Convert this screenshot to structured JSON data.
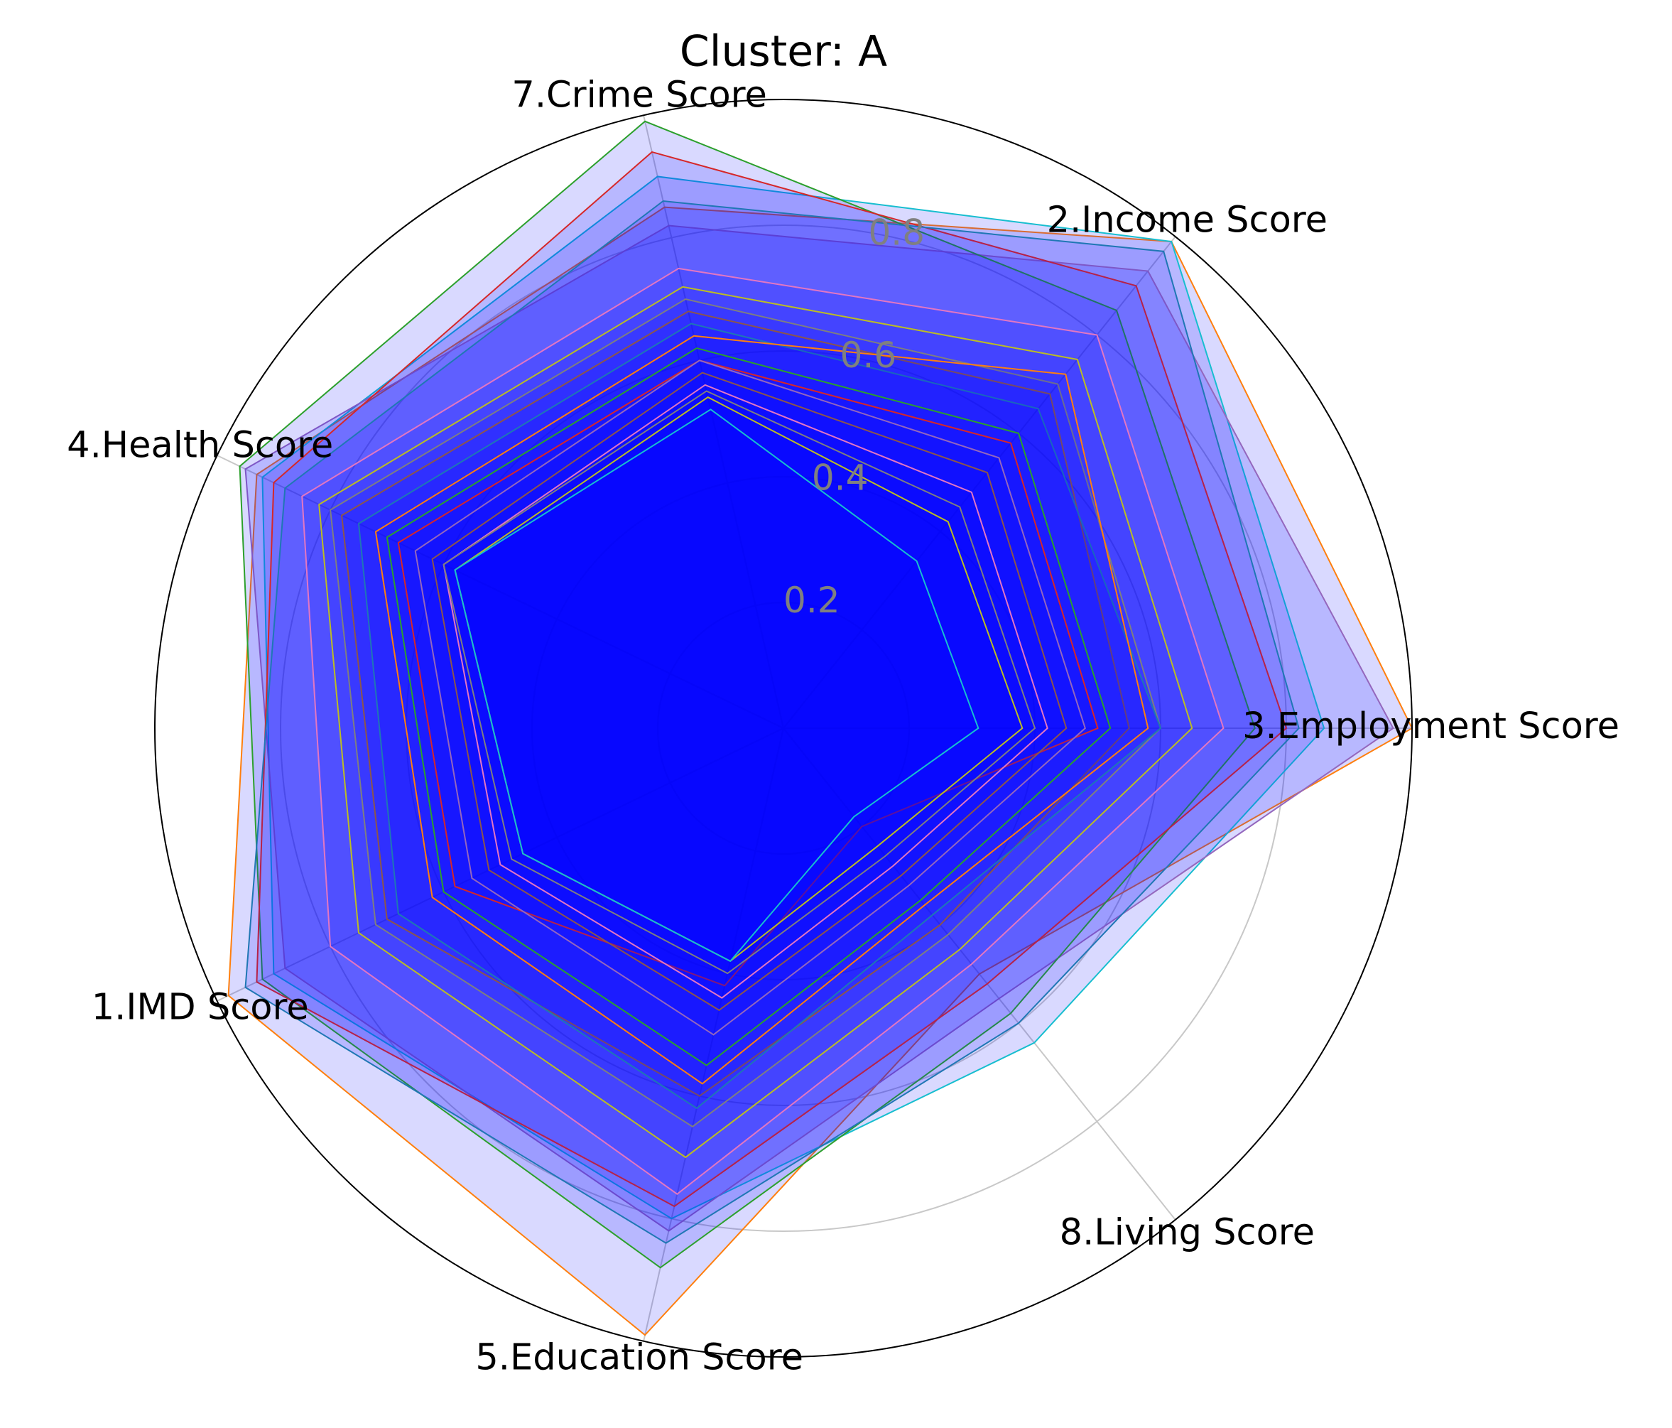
{
  "chart_data": {
    "type": "radar",
    "title": "Cluster: A",
    "categories": [
      "3.Employment Score",
      "2.Income Score",
      "7.Crime Score",
      "4.Health Score",
      "1.IMD Score",
      "5.Education Score",
      "8.Living Score"
    ],
    "ylim": [
      0,
      1
    ],
    "yticks": [
      0.2,
      0.4,
      0.6,
      0.8
    ],
    "grid": true,
    "fill_color": "#0000ff",
    "fill_alpha": 0.15,
    "series": [
      {
        "color": "#ff7f0e",
        "values": [
          1.0,
          0.99,
          0.85,
          0.93,
          0.98,
          0.99,
          0.5
        ]
      },
      {
        "color": "#17becf",
        "values": [
          0.86,
          0.99,
          0.9,
          0.92,
          0.9,
          0.8,
          0.64
        ]
      },
      {
        "color": "#9467bd",
        "values": [
          0.97,
          0.93,
          0.82,
          0.95,
          0.88,
          0.82,
          0.55
        ]
      },
      {
        "color": "#2ca02c",
        "values": [
          0.75,
          0.85,
          0.99,
          0.96,
          0.92,
          0.88,
          0.58
        ]
      },
      {
        "color": "#d62728",
        "values": [
          0.8,
          0.9,
          0.94,
          0.9,
          0.93,
          0.78,
          0.52
        ]
      },
      {
        "color": "#1f77b4",
        "values": [
          0.82,
          0.97,
          0.86,
          0.88,
          0.95,
          0.84,
          0.6
        ]
      },
      {
        "color": "#e377c2",
        "values": [
          0.7,
          0.8,
          0.75,
          0.85,
          0.8,
          0.76,
          0.48
        ]
      },
      {
        "color": "#bcbd22",
        "values": [
          0.65,
          0.75,
          0.72,
          0.82,
          0.75,
          0.7,
          0.45
        ]
      },
      {
        "color": "#7f7f7f",
        "values": [
          0.6,
          0.7,
          0.7,
          0.8,
          0.72,
          0.65,
          0.42
        ]
      },
      {
        "color": "#8c564b",
        "values": [
          0.55,
          0.68,
          0.68,
          0.78,
          0.7,
          0.6,
          0.4
        ]
      },
      {
        "color": "#1f77b4",
        "values": [
          0.6,
          0.65,
          0.66,
          0.75,
          0.68,
          0.62,
          0.38
        ]
      },
      {
        "color": "#ff7f0e",
        "values": [
          0.58,
          0.72,
          0.64,
          0.72,
          0.62,
          0.58,
          0.36
        ]
      },
      {
        "color": "#2ca02c",
        "values": [
          0.52,
          0.6,
          0.62,
          0.7,
          0.6,
          0.55,
          0.35
        ]
      },
      {
        "color": "#d62728",
        "values": [
          0.5,
          0.58,
          0.6,
          0.68,
          0.58,
          0.42,
          0.2
        ]
      },
      {
        "color": "#9467bd",
        "values": [
          0.48,
          0.55,
          0.6,
          0.65,
          0.55,
          0.5,
          0.32
        ]
      },
      {
        "color": "#8c564b",
        "values": [
          0.45,
          0.52,
          0.58,
          0.62,
          0.52,
          0.46,
          0.3
        ]
      },
      {
        "color": "#e377c2",
        "values": [
          0.42,
          0.48,
          0.56,
          0.6,
          0.5,
          0.44,
          0.28
        ]
      },
      {
        "color": "#7f7f7f",
        "values": [
          0.4,
          0.45,
          0.55,
          0.6,
          0.48,
          0.4,
          0.26
        ]
      },
      {
        "color": "#bcbd22",
        "values": [
          0.38,
          0.42,
          0.54,
          0.58,
          0.46,
          0.38,
          0.24
        ]
      },
      {
        "color": "#17becf",
        "values": [
          0.31,
          0.34,
          0.52,
          0.58,
          0.46,
          0.38,
          0.18
        ]
      }
    ]
  }
}
